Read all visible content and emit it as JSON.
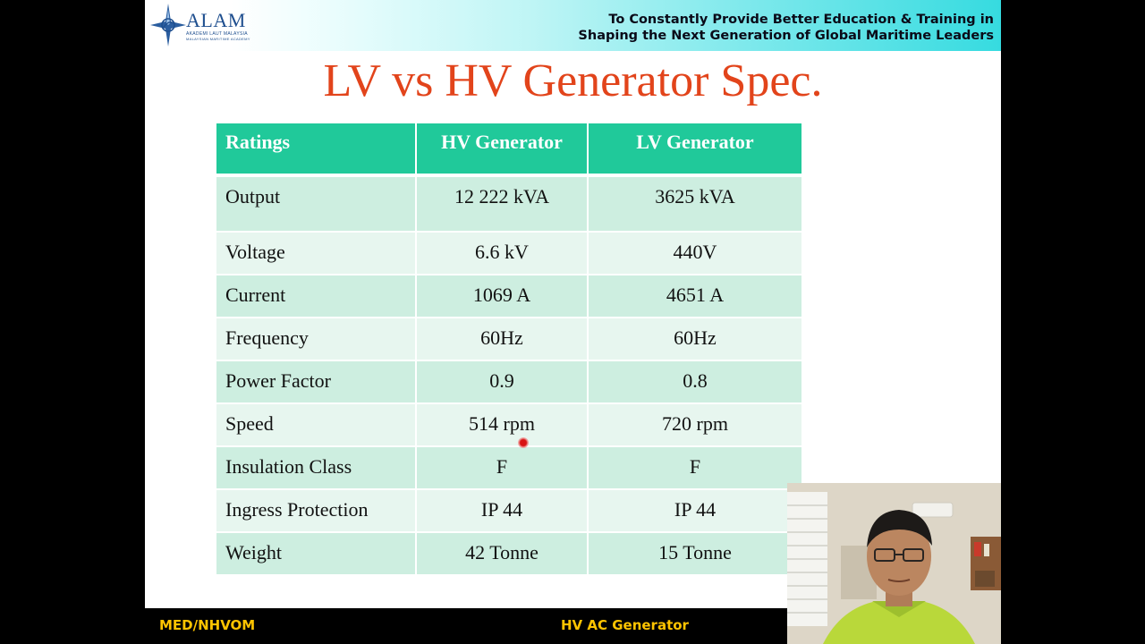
{
  "header": {
    "logo_word": "ALAM",
    "logo_sub1": "AKADEMI LAUT MALAYSIA",
    "logo_sub2": "MALAYSIAN MARITIME ACADEMY",
    "motto_line1": "To Constantly Provide Better Education & Training in",
    "motto_line2": "Shaping the Next Generation of Global Maritime Leaders"
  },
  "title": "LV vs HV Generator Spec.",
  "table": {
    "headers": [
      "Ratings",
      "HV Generator",
      "LV Generator"
    ],
    "rows": [
      [
        "Output",
        "12 222 kVA",
        "3625 kVA"
      ],
      [
        "Voltage",
        "6.6 kV",
        "440V"
      ],
      [
        "Current",
        "1069 A",
        "4651 A"
      ],
      [
        "Frequency",
        "60Hz",
        "60Hz"
      ],
      [
        "Power Factor",
        "0.9",
        "0.8"
      ],
      [
        "Speed",
        "514 rpm",
        "720 rpm"
      ],
      [
        "Insulation Class",
        "F",
        "F"
      ],
      [
        "Ingress Protection",
        "IP 44",
        "IP 44"
      ],
      [
        "Weight",
        "42 Tonne",
        "15 Tonne"
      ]
    ]
  },
  "footer": {
    "left": "MED/NHVOM",
    "right": "HV AC Generator"
  },
  "colors": {
    "title": "#e2441b",
    "table_header": "#20c99a",
    "row_dark": "#cdeee0",
    "row_light": "#e7f6ef",
    "footer_text": "#ffc400"
  }
}
